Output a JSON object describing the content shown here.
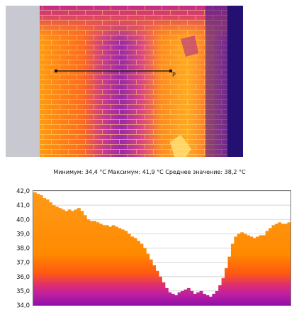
{
  "thermal_view": {
    "line_marker_label": "P"
  },
  "stats": {
    "min_label": "Минимум:",
    "min_value": "34,4",
    "max_label": "Максимум:",
    "max_value": "41,9",
    "avg_label": "Среднее значение:",
    "avg_value": "38,2",
    "unit": "°C"
  },
  "colors": {
    "hot": "#ffe27a",
    "mid": "#ff8a00",
    "warm": "#e0301a",
    "cool": "#a020a0",
    "cold": "#28108a"
  },
  "chart_data": {
    "type": "area",
    "ylim": [
      34.0,
      42.0
    ],
    "yticks": [
      "42,0",
      "41,0",
      "40,0",
      "39,0",
      "38,0",
      "37,0",
      "36,0",
      "35,0",
      "34,0"
    ],
    "grid": true,
    "values": [
      41.9,
      41.8,
      41.7,
      41.5,
      41.4,
      41.2,
      41.0,
      40.9,
      40.8,
      40.7,
      40.6,
      40.7,
      40.6,
      40.7,
      40.8,
      40.6,
      40.3,
      40.0,
      39.9,
      39.9,
      39.8,
      39.7,
      39.6,
      39.6,
      39.5,
      39.6,
      39.5,
      39.4,
      39.3,
      39.2,
      39.0,
      38.8,
      38.7,
      38.5,
      38.3,
      38.0,
      37.6,
      37.2,
      36.8,
      36.4,
      36.0,
      35.6,
      35.2,
      34.9,
      34.8,
      34.7,
      34.9,
      35.0,
      35.1,
      35.2,
      35.0,
      34.8,
      34.9,
      35.0,
      34.8,
      34.7,
      34.6,
      34.8,
      35.0,
      35.4,
      35.9,
      36.6,
      37.4,
      38.3,
      38.8,
      39.0,
      39.1,
      39.0,
      38.9,
      38.8,
      38.7,
      38.8,
      38.9,
      38.9,
      39.2,
      39.4,
      39.6,
      39.7,
      39.8,
      39.7,
      39.7,
      39.8
    ]
  }
}
